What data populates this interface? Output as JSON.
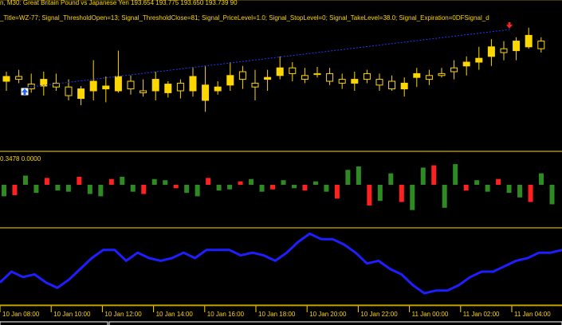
{
  "colors": {
    "background": "#000000",
    "bull_candle": "#FFD700",
    "bear_candle": "#000000",
    "wick": "#FFD700",
    "separator": "#FFD700",
    "trend_line": "#1E3CFF",
    "hist_up": "#2E8B22",
    "hist_down": "#FF2020",
    "indicator_line": "#1E1EFF",
    "buy_arrow": "#1E64FF",
    "sell_arrow": "#FF2020"
  },
  "main_panel": {
    "title_line1": "n, M30:  Great Britain Pound vs Japanese Yen  193.654 193.775 193.650 193.739  90",
    "title_line2": "_Title=WZ-77; Signal_ThresholdOpen=13; Signal_ThresholdClose=81; Signal_PriceLevel=1.0; Signal_StopLevel=0; Signal_TakeLevel=38.0; Signal_Expiration=0DFSignal_d"
  },
  "sub_panel1": {
    "label": "0.3478 0.0000"
  },
  "x_axis": {
    "ticks": [
      "10 Jan 08:00",
      "10 Jan 10:00",
      "10 Jan 12:00",
      "10 Jan 14:00",
      "10 Jan 16:00",
      "10 Jan 18:00",
      "10 Jan 20:00",
      "10 Jan 22:00",
      "11 Jan 00:00",
      "11 Jan 02:00",
      "11 Jan 04:00"
    ]
  },
  "chart_data": [
    {
      "type": "candlestick",
      "symbol": "GBPJPY",
      "timeframe": "M30",
      "ohlc": [
        [
          50,
          40,
          60,
          55
        ],
        [
          55,
          48,
          62,
          52
        ],
        [
          47,
          38,
          58,
          42
        ],
        [
          45,
          35,
          60,
          52
        ],
        [
          48,
          40,
          58,
          44
        ],
        [
          44,
          30,
          52,
          35
        ],
        [
          32,
          25,
          45,
          42
        ],
        [
          40,
          30,
          72,
          50
        ],
        [
          42,
          28,
          55,
          45
        ],
        [
          40,
          38,
          82,
          55
        ],
        [
          50,
          36,
          56,
          42
        ],
        [
          40,
          34,
          52,
          38
        ],
        [
          40,
          30,
          60,
          52
        ],
        [
          38,
          33,
          50,
          47
        ],
        [
          48,
          32,
          52,
          40
        ],
        [
          40,
          34,
          65,
          55
        ],
        [
          30,
          18,
          66,
          46
        ],
        [
          40,
          36,
          50,
          44
        ],
        [
          46,
          40,
          70,
          56
        ],
        [
          60,
          42,
          66,
          52
        ],
        [
          48,
          30,
          62,
          44
        ],
        [
          52,
          40,
          62,
          54
        ],
        [
          56,
          52,
          76,
          64
        ],
        [
          64,
          50,
          70,
          58
        ],
        [
          56,
          48,
          64,
          52
        ],
        [
          58,
          54,
          65,
          57
        ],
        [
          58,
          46,
          64,
          50
        ],
        [
          52,
          42,
          58,
          48
        ],
        [
          48,
          40,
          60,
          52
        ],
        [
          58,
          48,
          62,
          52
        ],
        [
          52,
          40,
          58,
          46
        ],
        [
          50,
          40,
          56,
          42
        ],
        [
          42,
          34,
          54,
          48
        ],
        [
          54,
          44,
          64,
          58
        ],
        [
          56,
          46,
          62,
          52
        ],
        [
          58,
          54,
          64,
          56
        ],
        [
          64,
          52,
          72,
          60
        ],
        [
          66,
          56,
          76,
          70
        ],
        [
          70,
          62,
          86,
          74
        ],
        [
          76,
          66,
          94,
          86
        ],
        [
          84,
          72,
          92,
          80
        ],
        [
          82,
          72,
          96,
          92
        ],
        [
          86,
          84,
          106,
          98
        ],
        [
          92,
          80,
          96,
          84
        ]
      ]
    },
    {
      "type": "bar",
      "label": "0.3478 0.0000",
      "values": [
        -0.2,
        -0.18,
        0.16,
        -0.14,
        0.12,
        -0.1,
        -0.12,
        0.14,
        -0.16,
        -0.2,
        0.1,
        0.14,
        -0.12,
        -0.16,
        0.1,
        0.08,
        -0.06,
        -0.14,
        -0.2,
        0.12,
        -0.1,
        -0.08,
        0.06,
        0.1,
        -0.12,
        -0.08,
        0.08,
        -0.06,
        -0.1,
        0.06,
        -0.12,
        -0.24,
        0.26,
        0.32,
        -0.36,
        -0.28,
        0.2,
        -0.3,
        -0.44,
        0.3,
        0.34,
        -0.4,
        0.36,
        -0.1,
        0.08,
        -0.12,
        0.1,
        -0.14,
        -0.22,
        -0.3,
        0.2,
        -0.34
      ]
    },
    {
      "type": "line",
      "values": [
        0.12,
        0.2,
        0.16,
        0.18,
        0.12,
        0.08,
        0.14,
        0.22,
        0.3,
        0.36,
        0.36,
        0.28,
        0.34,
        0.3,
        0.28,
        0.3,
        0.34,
        0.3,
        0.36,
        0.36,
        0.36,
        0.32,
        0.34,
        0.32,
        0.28,
        0.34,
        0.42,
        0.48,
        0.44,
        0.44,
        0.4,
        0.34,
        0.26,
        0.28,
        0.22,
        0.18,
        0.1,
        0.04,
        0.06,
        0.06,
        0.1,
        0.16,
        0.2,
        0.2,
        0.24,
        0.28,
        0.3,
        0.34,
        0.34,
        0.36
      ]
    }
  ]
}
